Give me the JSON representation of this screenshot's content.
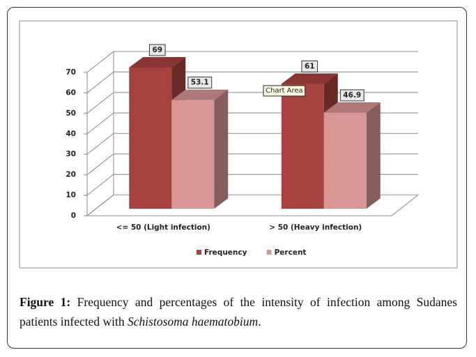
{
  "chart_data": {
    "type": "bar3d",
    "categories": [
      "<= 50 (Light infection)",
      "> 50 (Heavy infection)"
    ],
    "series": [
      {
        "name": "Frequency",
        "color": "#a8423f",
        "values": [
          69,
          61
        ]
      },
      {
        "name": "Percent",
        "color": "#d99694",
        "values": [
          53.1,
          46.9
        ]
      }
    ],
    "ylim": [
      0,
      70
    ],
    "yticks": [
      0,
      10,
      20,
      30,
      40,
      50,
      60,
      70
    ],
    "grid": true,
    "legend": "bottom",
    "annotation": "Chart Area"
  },
  "caption": {
    "label": "Figure 1:",
    "text": "Frequency and percentages of the intensity of infection among Sudanes patients infected with",
    "species": "Schistosoma haematobium",
    "end": "."
  }
}
